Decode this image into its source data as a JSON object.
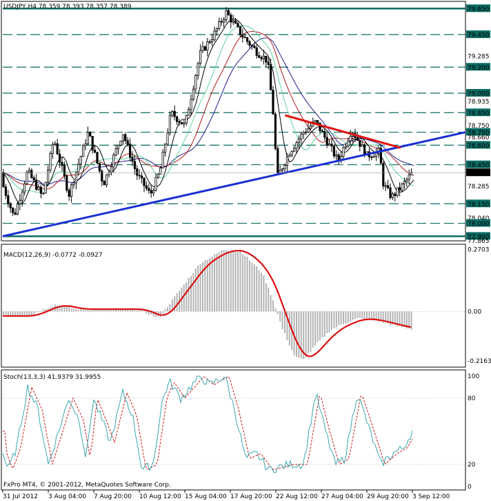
{
  "header": {
    "symbol_info": "USDJPY,H4  78.359 78.393 78.357 78.389"
  },
  "footer": {
    "copyright": "FxPro MT4, © 2001-2012, MetaQuotes Software Corp."
  },
  "colors": {
    "candle": "#000000",
    "blue_trend": "#1a2fd6",
    "red_trend": "#e0120e",
    "level_line": "#0b6b63",
    "ma_black": "#000000",
    "ma_blue": "#1c1c8c",
    "ma_red": "#b01818",
    "ma_green": "#5fd39a",
    "macd_hist": "#b4b4b4",
    "macd_signal": "#dd1010",
    "stoch_main": "#3aa6b0",
    "stoch_signal": "#cc1010"
  },
  "chart_data": [
    {
      "type": "candlestick",
      "title": "USDJPY,H4",
      "ohlc_last": {
        "open": 78.359,
        "high": 78.393,
        "low": 78.357,
        "close": 78.389
      },
      "x_tick_labels": [
        "31 Jul 2012",
        "3 Aug 04:00",
        "7 Aug 20:00",
        "10 Aug 12:00",
        "15 Aug 04:00",
        "17 Aug 20:00",
        "22 Aug 12:00",
        "27 Aug 04:00",
        "29 Aug 20:00",
        "3 Sep 12:00"
      ],
      "ylim": [
        77.865,
        79.7
      ],
      "y_tick_labels": [
        "79.650",
        "79.450",
        "79.285",
        "79.200",
        "79.000",
        "78.935",
        "78.850",
        "78.750",
        "78.700",
        "78.660",
        "78.600",
        "78.450",
        "78.389",
        "78.285",
        "78.150",
        "78.040",
        "78.000",
        "77.900",
        "77.865"
      ],
      "horizontal_levels": [
        79.65,
        79.45,
        79.2,
        79.0,
        78.85,
        78.7,
        78.6,
        78.45,
        78.15,
        78.0,
        77.9
      ],
      "current_price": 78.389,
      "trendlines": [
        {
          "color": "blue",
          "from": [
            0,
            77.9
          ],
          "to": [
            1,
            78.7
          ]
        },
        {
          "color": "red",
          "from": [
            0.61,
            78.83
          ],
          "to": [
            0.86,
            78.58
          ]
        }
      ],
      "moving_averages": [
        "black",
        "green",
        "red",
        "navy"
      ]
    },
    {
      "type": "bar",
      "title": "MACD(12,26,9) -0.0772 -0.0927",
      "ylim": [
        -0.24,
        0.29
      ],
      "y_tick_labels": [
        "0.2703",
        "0.00",
        "-0.2163"
      ],
      "macd_last": -0.0772,
      "signal_last": -0.0927
    },
    {
      "type": "line",
      "title": "Stoch(13,3,3) 41.9379 31.9955",
      "ylim": [
        0,
        100
      ],
      "y_tick_labels": [
        "100",
        "80",
        "20",
        "0"
      ],
      "main_last": 41.9379,
      "signal_last": 31.9955
    }
  ]
}
